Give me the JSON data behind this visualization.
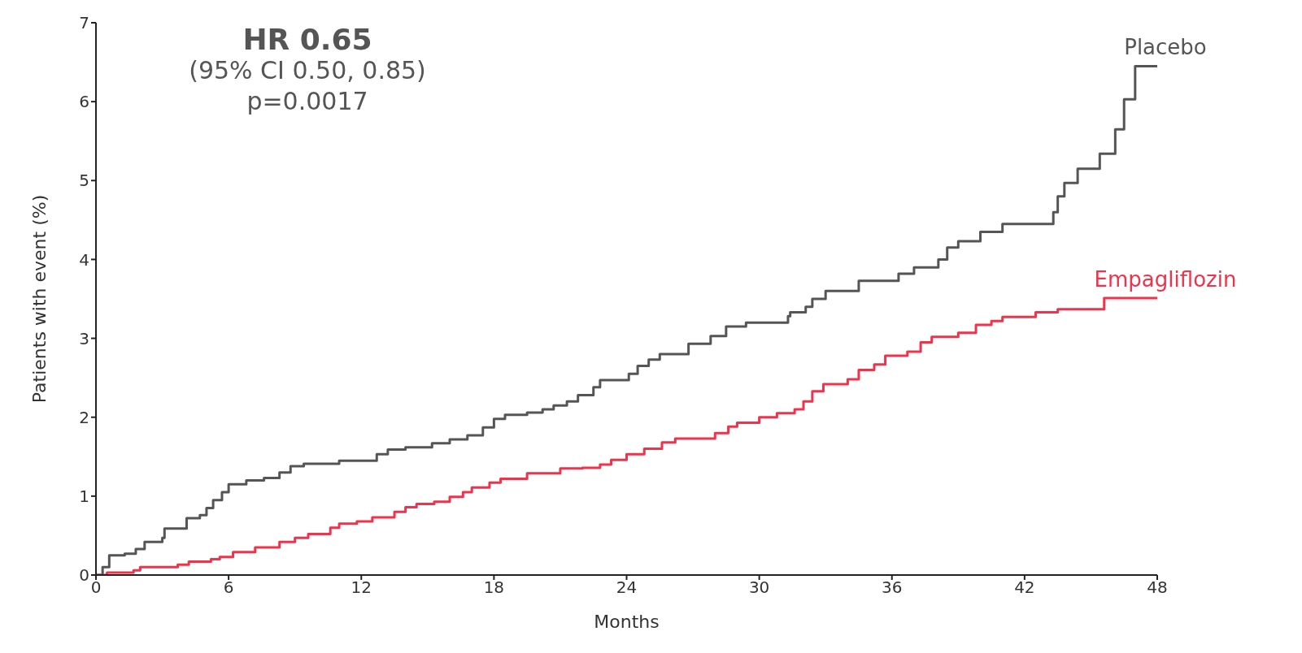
{
  "chart_data": {
    "type": "step",
    "xlabel": "Months",
    "ylabel": "Patients with event (%)",
    "annotations": [
      "HR 0.65",
      "(95% CI 0.50, 0.85)",
      "p=0.0017"
    ],
    "xlim": [
      0,
      48
    ],
    "xticks": [
      0,
      6,
      12,
      18,
      24,
      30,
      36,
      42,
      48
    ],
    "ylim": [
      0,
      7
    ],
    "yticks": [
      0,
      1,
      2,
      3,
      4,
      5,
      6,
      7
    ],
    "series": [
      {
        "name": "Placebo",
        "color": "#555555",
        "x": [
          0,
          0.3,
          0.6,
          1.3,
          1.8,
          2.2,
          3,
          3.1,
          4.1,
          4.7,
          5,
          5.3,
          5.7,
          6,
          6.8,
          7.6,
          8.3,
          8.8,
          9.4,
          11,
          12.7,
          13.2,
          14,
          15.2,
          16,
          16.8,
          17.5,
          18,
          18.5,
          19.5,
          20.2,
          20.7,
          21.3,
          21.8,
          22.5,
          22.8,
          24.1,
          24.5,
          25,
          25.5,
          26.8,
          27.8,
          28.5,
          29.4,
          31.3,
          31.4,
          32.1,
          32.4,
          33,
          34.5,
          36.3,
          37,
          38.1,
          38.5,
          39,
          40,
          41,
          43.3,
          43.5,
          43.8,
          44.4,
          45.4,
          46.1,
          46.5,
          47,
          48
        ],
        "values": [
          0,
          0.1,
          0.25,
          0.27,
          0.33,
          0.42,
          0.47,
          0.59,
          0.72,
          0.76,
          0.85,
          0.95,
          1.05,
          1.15,
          1.2,
          1.23,
          1.3,
          1.38,
          1.41,
          1.45,
          1.53,
          1.59,
          1.62,
          1.67,
          1.72,
          1.77,
          1.87,
          1.98,
          2.03,
          2.06,
          2.1,
          2.15,
          2.2,
          2.28,
          2.38,
          2.47,
          2.55,
          2.65,
          2.73,
          2.8,
          2.93,
          3.03,
          3.15,
          3.2,
          3.28,
          3.33,
          3.4,
          3.5,
          3.6,
          3.73,
          3.82,
          3.9,
          4,
          4.15,
          4.23,
          4.35,
          4.45,
          4.6,
          4.8,
          4.97,
          5.15,
          5.34,
          5.65,
          6.03,
          6.45,
          6.45
        ]
      },
      {
        "name": "Empagliflozin",
        "color": "#f0324b",
        "x": [
          0,
          0.5,
          1.7,
          2,
          3.7,
          4.2,
          5.2,
          5.6,
          6.2,
          7.2,
          8.3,
          9,
          9.6,
          10.6,
          11,
          11.8,
          12.5,
          13.5,
          14,
          14.5,
          15.3,
          16,
          16.6,
          17,
          17.8,
          18.3,
          19.5,
          21,
          22,
          22.8,
          23.3,
          24,
          24.8,
          25.6,
          26.2,
          28,
          28.6,
          29,
          30,
          30.8,
          31.6,
          32,
          32.4,
          32.9,
          34,
          34.5,
          35.2,
          35.7,
          36.7,
          37.3,
          37.8,
          39,
          39.8,
          40.5,
          41,
          42.5,
          43.5,
          45.6,
          48
        ],
        "values": [
          0,
          0.03,
          0.06,
          0.1,
          0.13,
          0.17,
          0.2,
          0.23,
          0.29,
          0.35,
          0.42,
          0.47,
          0.52,
          0.6,
          0.65,
          0.68,
          0.73,
          0.8,
          0.86,
          0.9,
          0.93,
          0.99,
          1.05,
          1.11,
          1.17,
          1.22,
          1.29,
          1.35,
          1.36,
          1.4,
          1.46,
          1.53,
          1.6,
          1.68,
          1.73,
          1.8,
          1.88,
          1.93,
          2,
          2.05,
          2.1,
          2.2,
          2.33,
          2.42,
          2.48,
          2.6,
          2.67,
          2.78,
          2.83,
          2.95,
          3.02,
          3.07,
          3.17,
          3.22,
          3.27,
          3.33,
          3.37,
          3.51,
          3.51
        ]
      }
    ]
  }
}
